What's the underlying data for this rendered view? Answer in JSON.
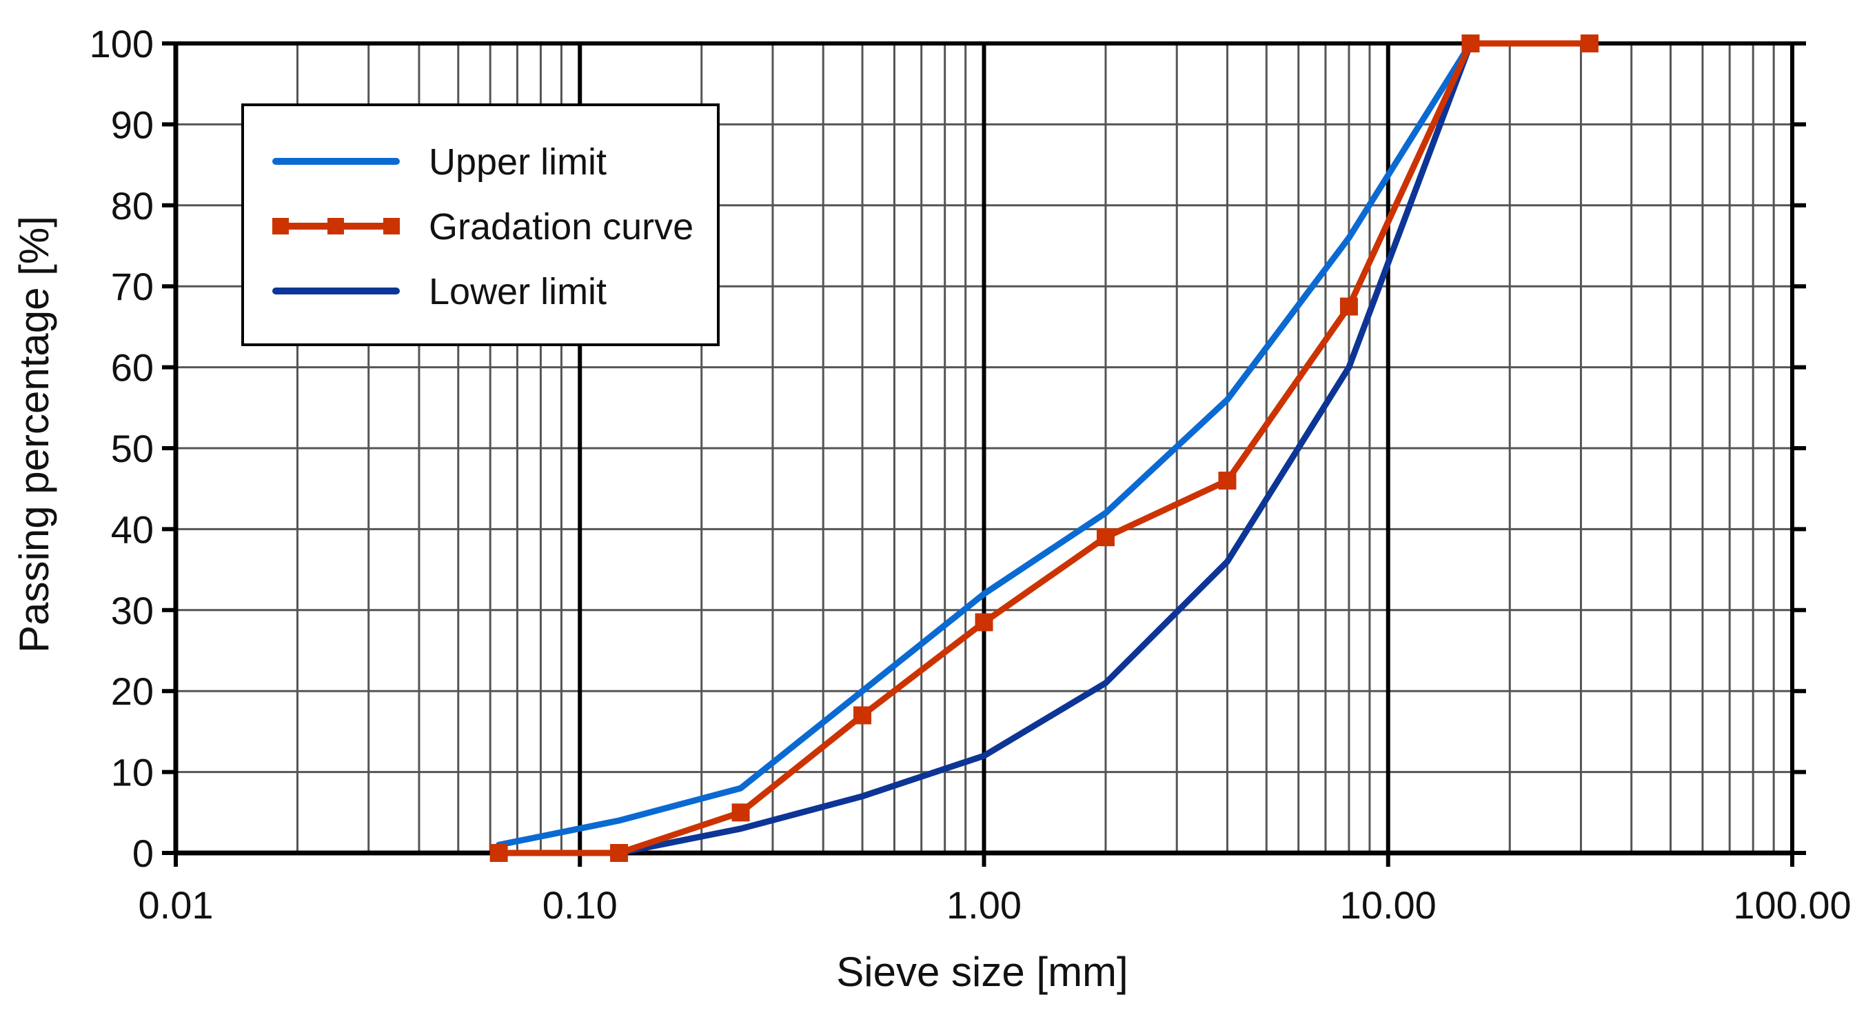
{
  "chart_data": {
    "type": "line",
    "x_scale": "log",
    "xlabel": "Sieve size [mm]",
    "ylabel": "Passing percentage [%]",
    "xlim": [
      0.01,
      100
    ],
    "ylim": [
      0,
      100
    ],
    "x_ticks": [
      0.01,
      0.1,
      1,
      10,
      100
    ],
    "x_tick_labels": [
      "0.01",
      "0.10",
      "1.00",
      "10.00",
      "100.00"
    ],
    "y_ticks": [
      0,
      10,
      20,
      30,
      40,
      50,
      60,
      70,
      80,
      90,
      100
    ],
    "y_tick_labels": [
      "0",
      "10",
      "20",
      "30",
      "40",
      "50",
      "60",
      "70",
      "80",
      "90",
      "100"
    ],
    "grid": true,
    "legend_position": "top-left",
    "series": [
      {
        "name": "Upper limit",
        "color": "#0a6ad2",
        "markers": false,
        "x": [
          0.063,
          0.125,
          0.25,
          0.5,
          1,
          2,
          4,
          8,
          16
        ],
        "y": [
          1,
          4,
          8,
          20,
          32,
          42,
          56,
          76,
          100
        ]
      },
      {
        "name": "Gradation curve",
        "color": "#cc3300",
        "markers": true,
        "x": [
          0.063,
          0.125,
          0.25,
          0.5,
          1,
          2,
          4,
          8,
          16,
          31.5
        ],
        "y": [
          0,
          0,
          5,
          17,
          28.5,
          39,
          46,
          67.5,
          100,
          100
        ]
      },
      {
        "name": "Lower limit",
        "color": "#0c3596",
        "markers": false,
        "x": [
          0.063,
          0.125,
          0.25,
          0.5,
          1,
          2,
          4,
          8,
          16,
          31.5
        ],
        "y": [
          0,
          0,
          3,
          7,
          12,
          21,
          36,
          60,
          100,
          100
        ]
      }
    ]
  }
}
